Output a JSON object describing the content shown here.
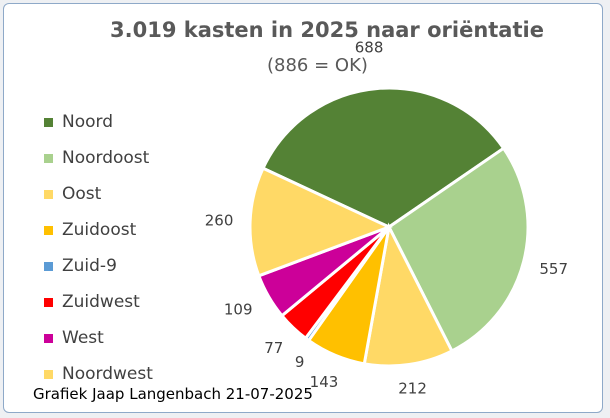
{
  "chart_data": {
    "type": "pie",
    "title": "3.019 kasten in 2025  naar oriëntatie",
    "subtitle": "(886 = OK)",
    "categories": [
      "Noord",
      "Noordoost",
      "Oost",
      "Zuidoost",
      "Zuid-9",
      "Zuidwest",
      "West",
      "Noordwest"
    ],
    "series": [
      {
        "values": [
          688,
          557,
          212,
          143,
          9,
          77,
          109,
          260
        ]
      }
    ],
    "colors": [
      "#548235",
      "#a9d18e",
      "#ffd966",
      "#ffc000",
      "#5b9bd5",
      "#ff0000",
      "#cc0099",
      "#ffd966"
    ],
    "legend_position": "left",
    "credit": "Grafiek Jaap Langenbach 21-07-2025"
  }
}
